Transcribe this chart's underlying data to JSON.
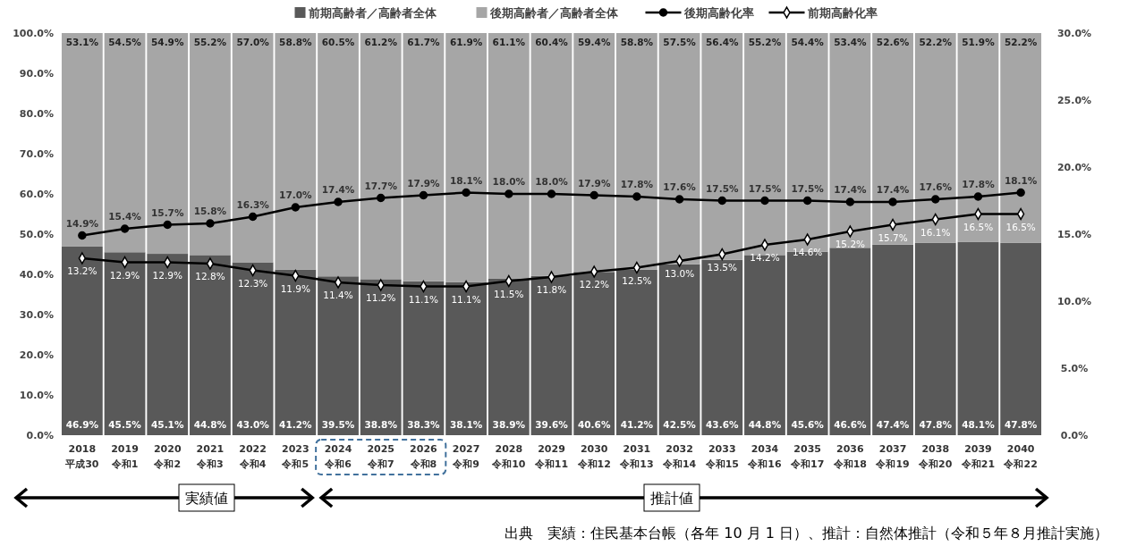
{
  "chart_data": {
    "type": "bar",
    "stacked": true,
    "legend": "top",
    "grid": false,
    "categories": [
      "2018\n平成30",
      "2019\n令和1",
      "2020\n令和2",
      "2021\n令和3",
      "2022\n令和4",
      "2023\n令和5",
      "2024\n令和6",
      "2025\n令和7",
      "2026\n令和8",
      "2027\n令和9",
      "2028\n令和10",
      "2029\n令和11",
      "2030\n令和12",
      "2031\n令和13",
      "2032\n令和14",
      "2033\n令和15",
      "2034\n令和16",
      "2035\n令和17",
      "2036\n令和18",
      "2037\n令和19",
      "2038\n令和20",
      "2039\n令和21",
      "2040\n令和22"
    ],
    "ylim": [
      0,
      100
    ],
    "yticks": [
      {
        "value": 0,
        "label": "0.0%"
      },
      {
        "value": 10,
        "label": "10.0%"
      },
      {
        "value": 20,
        "label": "20.0%"
      },
      {
        "value": 30,
        "label": "30.0%"
      },
      {
        "value": 40,
        "label": "40.0%"
      },
      {
        "value": 50,
        "label": "50.0%"
      },
      {
        "value": 60,
        "label": "60.0%"
      },
      {
        "value": 70,
        "label": "70.0%"
      },
      {
        "value": 80,
        "label": "80.0%"
      },
      {
        "value": 90,
        "label": "90.0%"
      },
      {
        "value": 100,
        "label": "100.0%"
      }
    ],
    "y2lim": [
      0,
      30
    ],
    "y2ticks": [
      {
        "value": 0,
        "label": "0.0%"
      },
      {
        "value": 5,
        "label": "5.0%"
      },
      {
        "value": 10,
        "label": "10.0%"
      },
      {
        "value": 15,
        "label": "15.0%"
      },
      {
        "value": 20,
        "label": "20.0%"
      },
      {
        "value": 25,
        "label": "25.0%"
      },
      {
        "value": 30,
        "label": "30.0%"
      }
    ],
    "series": [
      {
        "name": "前期高齢者／高齢者全体",
        "color": "#595959",
        "values": [
          46.9,
          45.5,
          45.1,
          44.8,
          43.0,
          41.2,
          39.5,
          38.8,
          38.3,
          38.1,
          38.9,
          39.6,
          40.6,
          41.2,
          42.5,
          43.6,
          44.8,
          45.6,
          46.6,
          47.4,
          47.8,
          48.1,
          47.8
        ],
        "value_labels": [
          "46.9%",
          "45.5%",
          "45.1%",
          "44.8%",
          "43.0%",
          "41.2%",
          "39.5%",
          "38.8%",
          "38.3%",
          "38.1%",
          "38.9%",
          "39.6%",
          "40.6%",
          "41.2%",
          "42.5%",
          "43.6%",
          "44.8%",
          "45.6%",
          "46.6%",
          "47.4%",
          "47.8%",
          "48.1%",
          "47.8%"
        ]
      },
      {
        "name": "後期高齢者／高齢者全体",
        "color": "#a6a6a6",
        "values": [
          53.1,
          54.5,
          54.9,
          55.2,
          57.0,
          58.8,
          60.5,
          61.2,
          61.7,
          61.9,
          61.1,
          60.4,
          59.4,
          58.8,
          57.5,
          56.4,
          55.2,
          54.4,
          53.4,
          52.6,
          52.2,
          51.9,
          52.2
        ],
        "value_labels": [
          "53.1%",
          "54.5%",
          "54.9%",
          "55.2%",
          "57.0%",
          "58.8%",
          "60.5%",
          "61.2%",
          "61.7%",
          "61.9%",
          "61.1%",
          "60.4%",
          "59.4%",
          "58.8%",
          "57.5%",
          "56.4%",
          "55.2%",
          "54.4%",
          "53.4%",
          "52.6%",
          "52.2%",
          "51.9%",
          "52.2%"
        ]
      },
      {
        "name": "後期高齢化率",
        "type": "line",
        "axis": "y2",
        "marker": "circle",
        "line_style": "solid",
        "color": "#000000",
        "values": [
          14.9,
          15.4,
          15.7,
          15.8,
          16.3,
          17.0,
          17.4,
          17.7,
          17.9,
          18.1,
          18.0,
          18.0,
          17.9,
          17.8,
          17.6,
          17.5,
          17.5,
          17.5,
          17.4,
          17.4,
          17.6,
          17.8,
          18.1
        ],
        "value_labels": [
          "14.9%",
          "15.4%",
          "15.7%",
          "15.8%",
          "16.3%",
          "17.0%",
          "17.4%",
          "17.7%",
          "17.9%",
          "18.1%",
          "18.0%",
          "18.0%",
          "17.9%",
          "17.8%",
          "17.6%",
          "17.5%",
          "17.5%",
          "17.5%",
          "17.4%",
          "17.4%",
          "17.6%",
          "17.8%",
          "18.1%"
        ]
      },
      {
        "name": "前期高齢化率",
        "type": "line",
        "axis": "y2",
        "marker": "diamond",
        "line_style": "solid",
        "color": "#000000",
        "values": [
          13.2,
          12.9,
          12.9,
          12.8,
          12.3,
          11.9,
          11.4,
          11.2,
          11.1,
          11.1,
          11.5,
          11.8,
          12.2,
          12.5,
          13.0,
          13.5,
          14.2,
          14.6,
          15.2,
          15.7,
          16.1,
          16.5,
          16.5
        ],
        "value_labels": [
          "13.2%",
          "12.9%",
          "12.9%",
          "12.8%",
          "12.3%",
          "11.9%",
          "11.4%",
          "11.2%",
          "11.1%",
          "11.1%",
          "11.5%",
          "11.8%",
          "12.2%",
          "12.5%",
          "13.0%",
          "13.5%",
          "14.2%",
          "14.6%",
          "15.2%",
          "15.7%",
          "16.1%",
          "16.5%",
          "16.5%"
        ]
      }
    ],
    "annotations": [
      "実績値",
      "推計値",
      "出典　実績：住民基本台帳（各年 10 月 1 日）、推計：自然体推計（令和５年８月推計実施）"
    ]
  }
}
